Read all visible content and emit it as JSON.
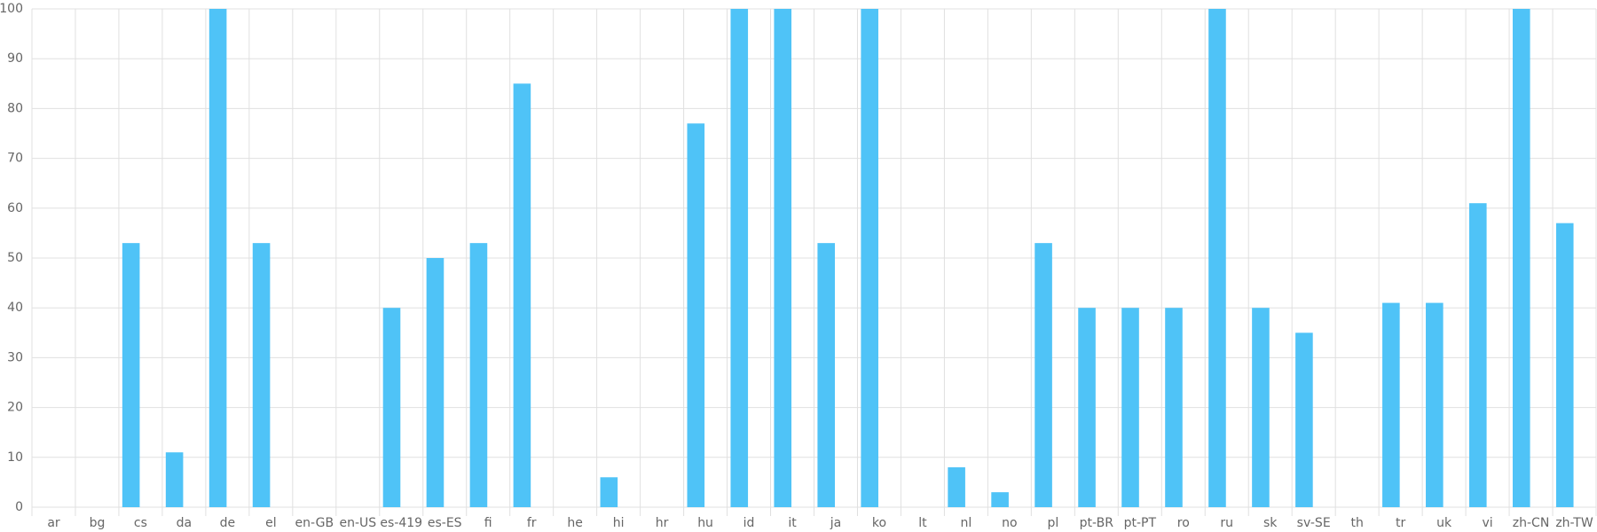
{
  "chart_data": {
    "type": "bar",
    "categories": [
      "ar",
      "bg",
      "cs",
      "da",
      "de",
      "el",
      "en-GB",
      "en-US",
      "es-419",
      "es-ES",
      "fi",
      "fr",
      "he",
      "hi",
      "hr",
      "hu",
      "id",
      "it",
      "ja",
      "ko",
      "lt",
      "nl",
      "no",
      "pl",
      "pt-BR",
      "pt-PT",
      "ro",
      "ru",
      "sk",
      "sv-SE",
      "th",
      "tr",
      "uk",
      "vi",
      "zh-CN",
      "zh-TW"
    ],
    "values": [
      0,
      0,
      53,
      11,
      100,
      53,
      0,
      0,
      40,
      50,
      53,
      85,
      0,
      6,
      0,
      77,
      100,
      100,
      53,
      100,
      0,
      8,
      3,
      53,
      40,
      40,
      40,
      100,
      40,
      35,
      0,
      41,
      41,
      61,
      100,
      57
    ],
    "color": "#4fc3f7",
    "ylim": [
      0,
      100
    ],
    "yticks": [
      0,
      10,
      20,
      30,
      40,
      50,
      60,
      70,
      80,
      90,
      100
    ],
    "grid": true
  }
}
